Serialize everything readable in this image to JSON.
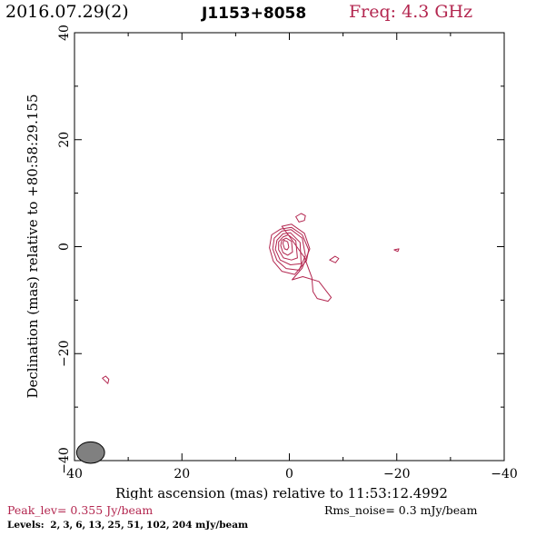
{
  "header": {
    "date": "2016.07.29(2)",
    "source": "J1153+8058",
    "freq": "Freq: 4.3 GHz"
  },
  "chart_data": {
    "type": "contour",
    "xlabel": "Right ascension (mas) relative to 11:53:12.4992",
    "ylabel": "Declination (mas) relative to +80:58:29.155",
    "xlim": [
      40,
      -40
    ],
    "ylim": [
      -40,
      40
    ],
    "x_ticks": [
      40,
      20,
      0,
      -20,
      -40
    ],
    "y_ticks": [
      -40,
      -20,
      0,
      20,
      40
    ],
    "x_tick_labels": [
      "40",
      "20",
      "0",
      "−20",
      "−40"
    ],
    "y_tick_labels": [
      "−40",
      "−20",
      "0",
      "20",
      "40"
    ],
    "contour_color": "#b3264f",
    "beam": {
      "x": 37,
      "y": -38.5,
      "major": 2.6,
      "minor": 2.0,
      "color": "#808080"
    },
    "contours": [
      [
        [
          -0.5,
          -6.2
        ],
        [
          -2.5,
          -5.6
        ],
        [
          -5.5,
          -6.5
        ],
        [
          -7.8,
          -9.5
        ],
        [
          -7.2,
          -10.2
        ],
        [
          -5.2,
          -9.7
        ],
        [
          -4.4,
          -8.4
        ],
        [
          -4.2,
          -5.8
        ],
        [
          -2.8,
          -2
        ],
        [
          0.2,
          2.2
        ],
        [
          1.4,
          3.8
        ],
        [
          -0.4,
          4.2
        ],
        [
          -2.8,
          2.5
        ],
        [
          -3.8,
          -0.4
        ],
        [
          -2.4,
          -4.0
        ],
        [
          -0.5,
          -6.2
        ]
      ],
      [
        [
          -1,
          -5.2
        ],
        [
          -3.2,
          -2.6
        ],
        [
          -3.6,
          -0.6
        ],
        [
          -2.4,
          2.2
        ],
        [
          -0.4,
          3.6
        ],
        [
          1.6,
          3.3
        ],
        [
          3.3,
          2.2
        ],
        [
          3.7,
          -0.2
        ],
        [
          3,
          -2.7
        ],
        [
          1.4,
          -4.6
        ],
        [
          -1,
          -5.2
        ]
      ],
      [
        [
          -1.8,
          -4.4
        ],
        [
          -3,
          -1.7
        ],
        [
          -2.4,
          1.6
        ],
        [
          -0.3,
          3.2
        ],
        [
          1.4,
          2.9
        ],
        [
          2.8,
          1.6
        ],
        [
          3.1,
          -0.4
        ],
        [
          2.3,
          -2.6
        ],
        [
          0.6,
          -4.1
        ],
        [
          -1.8,
          -4.4
        ]
      ],
      [
        [
          -2.2,
          -3.2
        ],
        [
          -2,
          0.8
        ],
        [
          -0.2,
          2.6
        ],
        [
          1.2,
          2.4
        ],
        [
          2.3,
          1.2
        ],
        [
          2.6,
          -0.5
        ],
        [
          1.7,
          -2.5
        ],
        [
          -0.2,
          -3.4
        ],
        [
          -2.2,
          -3.2
        ]
      ],
      [
        [
          -1.5,
          -2.1
        ],
        [
          -1.2,
          1.1
        ],
        [
          0.2,
          2.2
        ],
        [
          1.2,
          1.8
        ],
        [
          2,
          0.9
        ],
        [
          2,
          -0.6
        ],
        [
          1.1,
          -2.1
        ],
        [
          -0.4,
          -2.5
        ],
        [
          -1.5,
          -2.1
        ]
      ],
      [
        [
          -0.6,
          -1.0
        ],
        [
          -0.4,
          1.0
        ],
        [
          0.6,
          1.6
        ],
        [
          1.4,
          1.2
        ],
        [
          1.6,
          0.2
        ],
        [
          1.2,
          -1.1
        ],
        [
          0.3,
          -1.6
        ],
        [
          -0.6,
          -1.0
        ]
      ],
      [
        [
          0.1,
          -0.1
        ],
        [
          0.3,
          0.9
        ],
        [
          1,
          1.2
        ],
        [
          1.2,
          0.6
        ],
        [
          0.9,
          -0.4
        ],
        [
          0.4,
          -0.6
        ],
        [
          0.1,
          -0.1
        ]
      ],
      [
        [
          -1.2,
          5.6
        ],
        [
          -2.2,
          6.2
        ],
        [
          -3,
          5.8
        ],
        [
          -2.8,
          4.9
        ],
        [
          -1.8,
          4.6
        ],
        [
          -1.2,
          5.6
        ]
      ],
      [
        [
          -7.5,
          -2.5
        ],
        [
          -8.5,
          -1.8
        ],
        [
          -9.2,
          -2.2
        ],
        [
          -8.6,
          -3.0
        ],
        [
          -7.5,
          -2.5
        ]
      ],
      [
        [
          -19.5,
          -0.6
        ],
        [
          -20.4,
          -0.4
        ],
        [
          -20.2,
          -0.9
        ],
        [
          -19.5,
          -0.6
        ]
      ],
      [
        [
          34.2,
          -24.2
        ],
        [
          33.6,
          -24.8
        ],
        [
          33.8,
          -25.6
        ],
        [
          34.8,
          -24.6
        ],
        [
          34.2,
          -24.2
        ]
      ]
    ]
  },
  "footer": {
    "peak": "Peak_lev=  0.355 Jy/beam",
    "rms": "Rms_noise=   0.3 mJy/beam",
    "levels_label": "Levels:",
    "levels": [
      "2,",
      "3,",
      "6,",
      "13,",
      "25,",
      "51,",
      "102,",
      "204 mJy/beam"
    ]
  }
}
